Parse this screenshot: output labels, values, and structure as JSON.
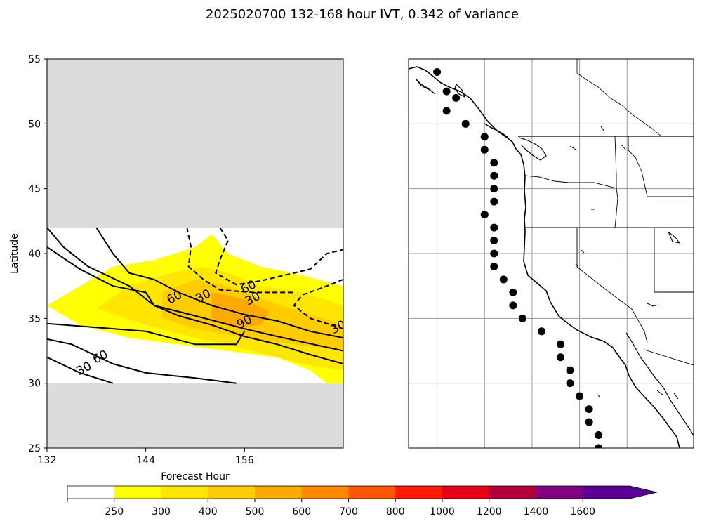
{
  "title": "2025020700 132-168 hour IVT, 0.342 of variance",
  "colors": {
    "masked": "#dcdcdc",
    "levels": [
      "#ffffff",
      "#ffff00",
      "#ffe600",
      "#ffcc00",
      "#ffaa00",
      "#ff8800",
      "#ff5500",
      "#ff1a00",
      "#e6001a",
      "#b3003d",
      "#800080",
      "#5a0096"
    ]
  },
  "chart_data": [
    {
      "type": "contour",
      "xlabel": "Forecast Hour",
      "ylabel": "Latitude",
      "xlim": [
        132,
        168
      ],
      "ylim": [
        25,
        55
      ],
      "xticks": [
        "132",
        "144",
        "156"
      ],
      "yticks": [
        "25",
        "30",
        "35",
        "40",
        "45",
        "50",
        "55"
      ],
      "valid_lat_range": [
        30,
        42
      ],
      "filled_regions": [
        {
          "level": 250,
          "polygon": [
            [
              132,
              36
            ],
            [
              136,
              37.5
            ],
            [
              140,
              39
            ],
            [
              145,
              39.5
            ],
            [
              150,
              40.5
            ],
            [
              152,
              41.5
            ],
            [
              154,
              40
            ],
            [
              158,
              39
            ],
            [
              162,
              38.5
            ],
            [
              168,
              37.5
            ],
            [
              168,
              30
            ],
            [
              166,
              30
            ],
            [
              164,
              31
            ],
            [
              160,
              32
            ],
            [
              154,
              32.5
            ],
            [
              148,
              33
            ],
            [
              142,
              33.5
            ],
            [
              136,
              34.5
            ],
            [
              132,
              36
            ]
          ]
        },
        {
          "level": 300,
          "polygon": [
            [
              138,
              35.8
            ],
            [
              142,
              37.5
            ],
            [
              147,
              38.5
            ],
            [
              151,
              39
            ],
            [
              154,
              38.5
            ],
            [
              158,
              37.5
            ],
            [
              163,
              37
            ],
            [
              168,
              36
            ],
            [
              168,
              31
            ],
            [
              163,
              31.5
            ],
            [
              157,
              32.5
            ],
            [
              150,
              33.5
            ],
            [
              144,
              34.5
            ],
            [
              138,
              35.8
            ]
          ]
        },
        {
          "level": 400,
          "polygon": [
            [
              146,
              37
            ],
            [
              150,
              38
            ],
            [
              154,
              37.5
            ],
            [
              158,
              36.5
            ],
            [
              163,
              35.5
            ],
            [
              168,
              34.5
            ],
            [
              168,
              32.5
            ],
            [
              162,
              33
            ],
            [
              156,
              33.5
            ],
            [
              150,
              34.2
            ],
            [
              146,
              35
            ],
            [
              146,
              37
            ]
          ]
        },
        {
          "level": 500,
          "polygon": [
            [
              152,
              37
            ],
            [
              156,
              36.5
            ],
            [
              159,
              35.5
            ],
            [
              158,
              34.5
            ],
            [
              155,
              34.3
            ],
            [
              152,
              35
            ],
            [
              152,
              37
            ]
          ]
        }
      ],
      "contours": [
        {
          "label": "30",
          "style": "solid",
          "points": [
            [
              132,
              42
            ],
            [
              134,
              40.5
            ],
            [
              137,
              39
            ],
            [
              142,
              37.5
            ],
            [
              145,
              36
            ],
            [
              148,
              35.2
            ],
            [
              152,
              34.5
            ],
            [
              156,
              33.6
            ],
            [
              160,
              33
            ],
            [
              164,
              32.2
            ],
            [
              168,
              31.5
            ]
          ]
        },
        {
          "label": "60",
          "style": "solid",
          "points": [
            [
              132,
              40.5
            ],
            [
              136,
              38.8
            ],
            [
              140,
              37.5
            ],
            [
              144,
              37
            ],
            [
              145,
              36
            ],
            [
              150,
              35.2
            ],
            [
              156,
              34.2
            ],
            [
              160,
              33.6
            ],
            [
              168,
              32.5
            ]
          ]
        },
        {
          "label": "90",
          "style": "solid",
          "points": [
            [
              138,
              42
            ],
            [
              140,
              40
            ],
            [
              142,
              38.5
            ],
            [
              145,
              38
            ],
            [
              148,
              37
            ],
            [
              152,
              36
            ],
            [
              156,
              35.3
            ],
            [
              160,
              34.8
            ],
            [
              164,
              34
            ],
            [
              168,
              33.5
            ]
          ]
        },
        {
          "label": "30",
          "style": "solid",
          "points": [
            [
              132,
              34.6
            ],
            [
              138,
              34.3
            ],
            [
              144,
              34
            ],
            [
              150,
              33
            ],
            [
              155,
              33
            ],
            [
              156,
              34
            ]
          ]
        },
        {
          "label": "60",
          "style": "solid",
          "points": [
            [
              132,
              33.4
            ],
            [
              135,
              33
            ],
            [
              140,
              31.5
            ],
            [
              144,
              30.8
            ],
            [
              150,
              30.4
            ],
            [
              155,
              30
            ]
          ]
        },
        {
          "label": "30",
          "style": "solid",
          "points": [
            [
              132,
              32
            ],
            [
              136,
              30.8
            ],
            [
              140,
              30
            ]
          ]
        },
        {
          "label": "30",
          "style": "dashed",
          "points": [
            [
              149,
              42
            ],
            [
              149.5,
              40.5
            ],
            [
              149.2,
              39
            ],
            [
              151,
              38
            ],
            [
              153,
              37.2
            ],
            [
              157,
              37
            ],
            [
              162,
              37
            ]
          ]
        },
        {
          "label": "60",
          "style": "dashed",
          "points": [
            [
              153,
              42
            ],
            [
              154,
              41
            ],
            [
              153,
              39.5
            ],
            [
              152.5,
              38.5
            ],
            [
              155,
              37.6
            ],
            [
              158,
              37.9
            ],
            [
              164,
              38.8
            ],
            [
              166,
              40
            ],
            [
              168,
              40.3
            ]
          ]
        },
        {
          "label": "30",
          "style": "dashed",
          "points": [
            [
              168,
              38
            ],
            [
              166,
              37.5
            ],
            [
              163,
              36.8
            ],
            [
              162,
              36
            ],
            [
              164,
              35
            ],
            [
              168,
              34.2
            ]
          ]
        }
      ],
      "contour_labels": [
        {
          "text": "60",
          "x": 147.5,
          "y": 36.6
        },
        {
          "text": "30",
          "x": 151,
          "y": 36.7
        },
        {
          "text": "60",
          "x": 156.5,
          "y": 37.4
        },
        {
          "text": "30",
          "x": 157,
          "y": 36.5
        },
        {
          "text": "90",
          "x": 156,
          "y": 34.7
        },
        {
          "text": "30",
          "x": 167.4,
          "y": 34.3
        },
        {
          "text": "60",
          "x": 138.5,
          "y": 32
        },
        {
          "text": "30",
          "x": 136.5,
          "y": 31.1
        }
      ]
    },
    {
      "type": "map",
      "lon_range": [
        -136,
        -106
      ],
      "lat_range": [
        25,
        55
      ],
      "gridlines_lon": [
        -133,
        -128,
        -123,
        -118,
        -113
      ],
      "gridlines_lat": [
        30,
        35,
        40,
        45,
        50
      ],
      "points": [
        {
          "lon": -133,
          "lat": 54
        },
        {
          "lon": -132,
          "lat": 52.5
        },
        {
          "lon": -131,
          "lat": 52
        },
        {
          "lon": -132,
          "lat": 51
        },
        {
          "lon": -130,
          "lat": 50
        },
        {
          "lon": -128,
          "lat": 49
        },
        {
          "lon": -128,
          "lat": 48
        },
        {
          "lon": -127,
          "lat": 47
        },
        {
          "lon": -127,
          "lat": 46
        },
        {
          "lon": -127,
          "lat": 45
        },
        {
          "lon": -127,
          "lat": 44
        },
        {
          "lon": -128,
          "lat": 43
        },
        {
          "lon": -127,
          "lat": 42
        },
        {
          "lon": -127,
          "lat": 41
        },
        {
          "lon": -127,
          "lat": 40
        },
        {
          "lon": -127,
          "lat": 39
        },
        {
          "lon": -126,
          "lat": 38
        },
        {
          "lon": -125,
          "lat": 37
        },
        {
          "lon": -125,
          "lat": 36
        },
        {
          "lon": -124,
          "lat": 35
        },
        {
          "lon": -122,
          "lat": 34
        },
        {
          "lon": -120,
          "lat": 33
        },
        {
          "lon": -120,
          "lat": 32
        },
        {
          "lon": -119,
          "lat": 31
        },
        {
          "lon": -119,
          "lat": 30
        },
        {
          "lon": -118,
          "lat": 29
        },
        {
          "lon": -117,
          "lat": 28
        },
        {
          "lon": -117,
          "lat": 27
        },
        {
          "lon": -116,
          "lat": 26
        },
        {
          "lon": -116,
          "lat": 25
        }
      ]
    },
    {
      "type": "colorbar",
      "ticks": [
        "250",
        "300",
        "400",
        "500",
        "600",
        "700",
        "800",
        "1000",
        "1200",
        "1400",
        "1600"
      ],
      "extend": "max"
    }
  ]
}
